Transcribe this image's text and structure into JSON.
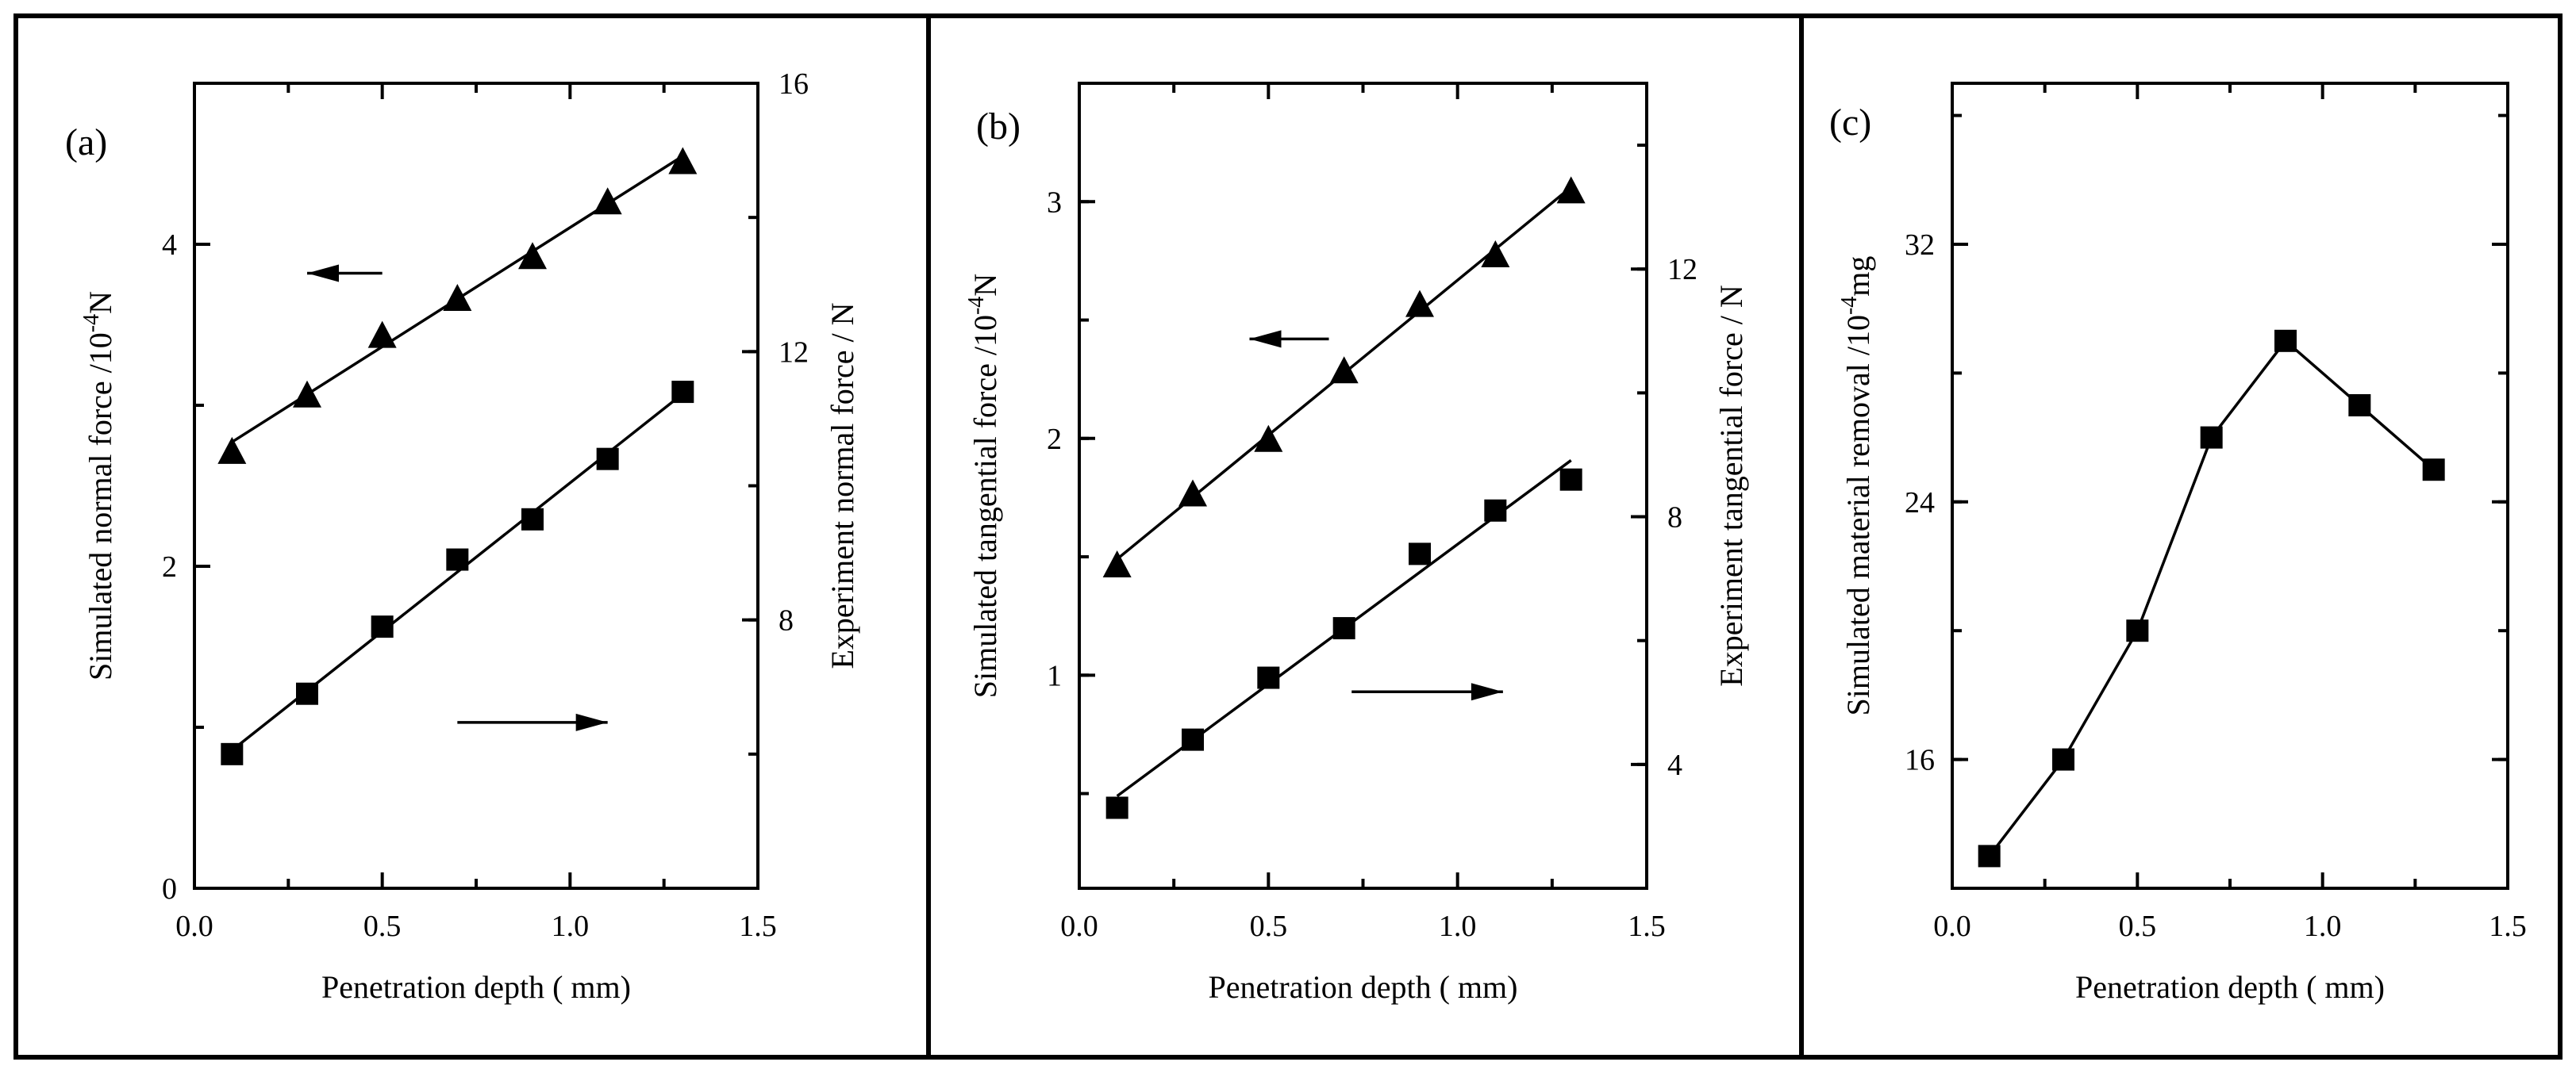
{
  "chart_data": [
    {
      "type": "line",
      "panel_label": "(a)",
      "xlabel": "Penetration depth ( mm)",
      "ylabel_left": "Simulated normal force /10",
      "ylabel_left_exp": "-4",
      "ylabel_left_unit": "N",
      "ylabel_right": "Experiment normal force / N",
      "xlim": [
        0,
        1.5
      ],
      "ylim_left": [
        0,
        5
      ],
      "ylim_right": [
        4,
        16
      ],
      "x_ticks": [
        "0.0",
        "0.5",
        "1.0",
        "1.5"
      ],
      "y_left_ticks": [
        "0",
        "2",
        "4"
      ],
      "y_right_ticks": [
        "8",
        "12",
        "16"
      ],
      "series": [
        {
          "name": "Simulated normal force",
          "marker": "triangle",
          "axis": "left",
          "x": [
            0.1,
            0.3,
            0.5,
            0.7,
            0.9,
            1.1,
            1.3
          ],
          "values": [
            2.72,
            3.07,
            3.44,
            3.67,
            3.93,
            4.27,
            4.52
          ]
        },
        {
          "name": "Experiment normal force",
          "marker": "square",
          "axis": "right",
          "x": [
            0.1,
            0.3,
            0.5,
            0.7,
            0.9,
            1.1,
            1.3
          ],
          "values": [
            6.0,
            6.9,
            7.9,
            8.9,
            9.5,
            10.4,
            11.4
          ]
        }
      ],
      "arrows": [
        {
          "direction": "left",
          "x_from": 0.5,
          "x_to": 0.3,
          "y": 3.82,
          "axis": "left"
        },
        {
          "direction": "right",
          "x_from": 0.7,
          "x_to": 1.1,
          "y": 1.03,
          "axis": "left"
        }
      ]
    },
    {
      "type": "line",
      "panel_label": "(b)",
      "xlabel": "Penetration depth ( mm)",
      "ylabel_left": "Simulated  tangential force /10",
      "ylabel_left_exp": "-4",
      "ylabel_left_unit": "N",
      "ylabel_right": "Experiment  tangential force / N",
      "xlim": [
        0,
        1.5
      ],
      "ylim_left": [
        0.1,
        3.5
      ],
      "ylim_right": [
        2.0,
        15.0
      ],
      "x_ticks": [
        "0.0",
        "0.5",
        "1.0",
        "1.5"
      ],
      "y_left_ticks": [
        "1",
        "2",
        "3"
      ],
      "y_right_ticks": [
        "4",
        "8",
        "12"
      ],
      "series": [
        {
          "name": "Simulated tangential force",
          "marker": "triangle",
          "axis": "left",
          "x": [
            0.1,
            0.3,
            0.5,
            0.7,
            0.9,
            1.1,
            1.3
          ],
          "values": [
            1.47,
            1.77,
            2.0,
            2.29,
            2.57,
            2.78,
            3.05
          ]
        },
        {
          "name": "Experiment tangential force",
          "marker": "square",
          "axis": "right",
          "x": [
            0.1,
            0.3,
            0.5,
            0.7,
            0.9,
            1.1,
            1.3
          ],
          "values": [
            3.3,
            4.4,
            5.4,
            6.2,
            7.4,
            8.1,
            8.6
          ]
        }
      ],
      "arrows": [
        {
          "direction": "left",
          "x_from": 0.5,
          "x_to": 0.45,
          "y": 2.42,
          "axis": "left"
        },
        {
          "direction": "right",
          "x_from": 0.72,
          "x_to": 1.12,
          "y": 0.93,
          "axis": "left"
        }
      ]
    },
    {
      "type": "line",
      "panel_label": "(c)",
      "xlabel": "Penetration depth ( mm)",
      "ylabel_left": "Simulated material removal /10",
      "ylabel_left_exp": "-4",
      "ylabel_left_unit": "mg",
      "xlim": [
        0,
        1.5
      ],
      "ylim_left": [
        12,
        37
      ],
      "x_ticks": [
        "0.0",
        "0.5",
        "1.0",
        "1.5"
      ],
      "y_left_ticks": [
        "16",
        "24",
        "32"
      ],
      "series": [
        {
          "name": "Simulated material removal",
          "marker": "square",
          "axis": "left",
          "x": [
            0.1,
            0.3,
            0.5,
            0.7,
            0.9,
            1.1,
            1.3
          ],
          "values": [
            13,
            16,
            20,
            26,
            29,
            27,
            25
          ]
        }
      ]
    }
  ]
}
